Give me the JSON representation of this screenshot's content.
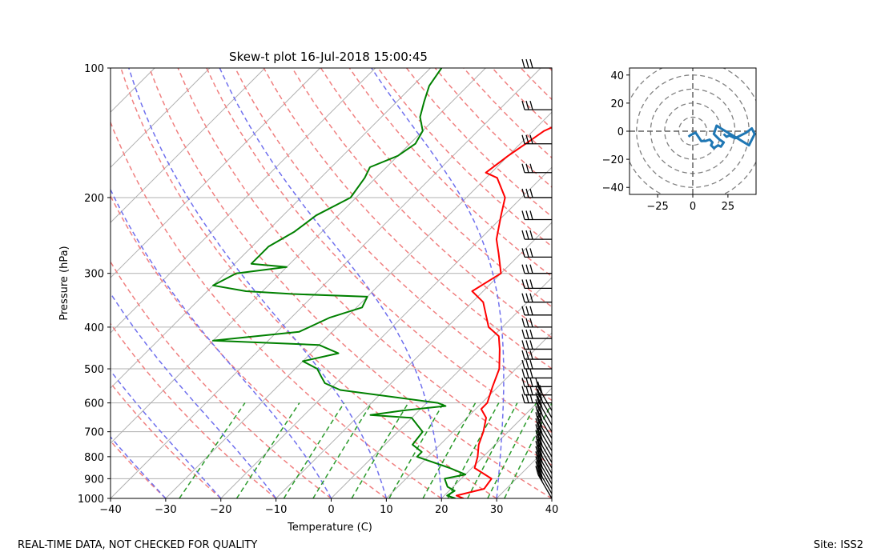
{
  "footer": {
    "quality_note": "REAL-TIME DATA, NOT CHECKED FOR QUALITY",
    "site": "Site: ISS2"
  },
  "colors": {
    "temperature": "#ff0000",
    "dewpoint": "#008000",
    "dry_adiabat": "#f08080",
    "moist_adiabat": "#7070ee",
    "mixing_ratio": "#2a9a2a",
    "isotherm": "#b0b0b0",
    "hodograph": "#1f77b4"
  },
  "chart_data": [
    {
      "type": "line",
      "title": "Skew-t plot 16-Jul-2018 15:00:45",
      "xlabel": "Temperature (C)",
      "ylabel": "Pressure (hPa)",
      "xlim": [
        -40,
        40
      ],
      "ylim": [
        1000,
        100
      ],
      "y_scale": "log",
      "x_ticks": [
        -40,
        -30,
        -20,
        -10,
        0,
        10,
        20,
        30,
        40
      ],
      "y_ticks": [
        1000,
        900,
        800,
        700,
        600,
        500,
        400,
        300,
        200,
        100
      ],
      "series": [
        {
          "role": "temperature",
          "points": [
            [
              1000,
              24
            ],
            [
              985,
              22.2
            ],
            [
              950,
              26
            ],
            [
              900,
              25.5
            ],
            [
              850,
              20.5
            ],
            [
              800,
              19
            ],
            [
              750,
              17
            ],
            [
              700,
              15.5
            ],
            [
              650,
              13.5
            ],
            [
              620,
              11
            ],
            [
              600,
              11
            ],
            [
              550,
              9
            ],
            [
              500,
              7
            ],
            [
              450,
              3.5
            ],
            [
              420,
              1
            ],
            [
              400,
              -2.5
            ],
            [
              350,
              -8
            ],
            [
              330,
              -12
            ],
            [
              300,
              -10
            ],
            [
              270,
              -14
            ],
            [
              250,
              -17
            ],
            [
              220,
              -20.5
            ],
            [
              200,
              -23
            ],
            [
              180,
              -28
            ],
            [
              175,
              -31
            ],
            [
              160,
              -30
            ],
            [
              150,
              -29
            ],
            [
              140,
              -28
            ],
            [
              130,
              -25
            ],
            [
              120,
              -22
            ],
            [
              110,
              -19
            ],
            [
              105,
              -17.5
            ],
            [
              100,
              -16.5
            ]
          ]
        },
        {
          "role": "dewpoint",
          "points": [
            [
              1000,
              22.5
            ],
            [
              985,
              20.5
            ],
            [
              960,
              21
            ],
            [
              940,
              19
            ],
            [
              900,
              17
            ],
            [
              880,
              20
            ],
            [
              850,
              16
            ],
            [
              800,
              8
            ],
            [
              780,
              8
            ],
            [
              750,
              5
            ],
            [
              700,
              4.5
            ],
            [
              650,
              0
            ],
            [
              640,
              -8
            ],
            [
              625,
              -3
            ],
            [
              610,
              4
            ],
            [
              600,
              2
            ],
            [
              560,
              -18
            ],
            [
              540,
              -22
            ],
            [
              520,
              -24
            ],
            [
              500,
              -26
            ],
            [
              480,
              -30
            ],
            [
              460,
              -25
            ],
            [
              440,
              -30
            ],
            [
              430,
              -50
            ],
            [
              410,
              -36
            ],
            [
              400,
              -35
            ],
            [
              380,
              -33
            ],
            [
              360,
              -29
            ],
            [
              340,
              -30
            ],
            [
              335,
              -44
            ],
            [
              330,
              -53
            ],
            [
              320,
              -60
            ],
            [
              300,
              -58
            ],
            [
              290,
              -50
            ],
            [
              285,
              -57
            ],
            [
              260,
              -57
            ],
            [
              240,
              -55
            ],
            [
              220,
              -54
            ],
            [
              200,
              -51
            ],
            [
              180,
              -52
            ],
            [
              170,
              -53
            ],
            [
              160,
              -50
            ],
            [
              150,
              -49
            ],
            [
              140,
              -50
            ],
            [
              130,
              -53
            ],
            [
              120,
              -55
            ],
            [
              110,
              -57
            ],
            [
              100,
              -58
            ]
          ]
        }
      ],
      "wind_barbs": "plotted along right edge of skew-t",
      "grid": true
    },
    {
      "type": "line",
      "title": "",
      "xlim": [
        -45,
        45
      ],
      "ylim": [
        -45,
        45
      ],
      "x_ticks": [
        -25,
        0,
        25
      ],
      "y_ticks": [
        -40,
        -20,
        0,
        20,
        40
      ],
      "range_rings": [
        10,
        20,
        30,
        40,
        50
      ],
      "series": [
        {
          "role": "hodograph",
          "points": [
            [
              -3,
              -4
            ],
            [
              -2,
              -3
            ],
            [
              0,
              -2
            ],
            [
              2,
              -1
            ],
            [
              4,
              -4
            ],
            [
              6,
              -7
            ],
            [
              9,
              -7
            ],
            [
              12,
              -6
            ],
            [
              14,
              -8
            ],
            [
              13,
              -10
            ],
            [
              15,
              -12
            ],
            [
              18,
              -10
            ],
            [
              20,
              -11
            ],
            [
              22,
              -8
            ],
            [
              19,
              -6
            ],
            [
              17,
              -4
            ],
            [
              15,
              -2
            ],
            [
              17,
              4
            ],
            [
              20,
              2
            ],
            [
              25,
              -1
            ],
            [
              30,
              -4
            ],
            [
              35,
              -7
            ],
            [
              40,
              -10
            ],
            [
              44,
              -2
            ],
            [
              42,
              2
            ],
            [
              38,
              -1
            ],
            [
              34,
              -3
            ],
            [
              30,
              -5
            ],
            [
              26,
              -3
            ],
            [
              24,
              -4
            ],
            [
              22,
              -2
            ]
          ]
        }
      ]
    }
  ]
}
